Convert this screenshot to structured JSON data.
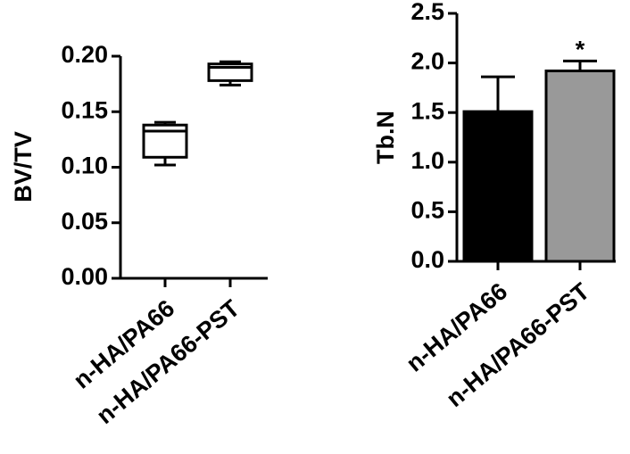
{
  "chart_data": [
    {
      "type": "box",
      "ylabel": "BV/TV",
      "categories": [
        "n-HA/PA66",
        "n-HA/PA66-PST"
      ],
      "boxes": [
        {
          "min": 0.102,
          "q1": 0.109,
          "median": 0.1325,
          "q3": 0.138,
          "max": 0.1405
        },
        {
          "min": 0.174,
          "q1": 0.178,
          "median": 0.19,
          "q3": 0.193,
          "max": 0.195
        }
      ],
      "color": "#ffffff",
      "ylim": [
        0,
        0.2
      ],
      "yticks": [
        {
          "value": 0,
          "label": "0.00"
        },
        0.05,
        {
          "value": 0.1,
          "label": "0.10"
        },
        0.15,
        {
          "value": 0.2,
          "label": "0.20"
        }
      ]
    },
    {
      "type": "bar",
      "ylabel": "Tb.N",
      "categories": [
        "n-HA/PA66",
        "n-HA/PA66-PST"
      ],
      "values": [
        1.51,
        1.92
      ],
      "errors": [
        0.35,
        0.1
      ],
      "colors": [
        "#000000",
        "#999999"
      ],
      "annotation": "*",
      "ylim": [
        0,
        2.5
      ],
      "yticks": [
        {
          "value": 0,
          "label": "0.0"
        },
        0.5,
        {
          "value": 1,
          "label": "1.0"
        },
        1.5,
        {
          "value": 2,
          "label": "2.0"
        },
        2.5
      ]
    }
  ]
}
